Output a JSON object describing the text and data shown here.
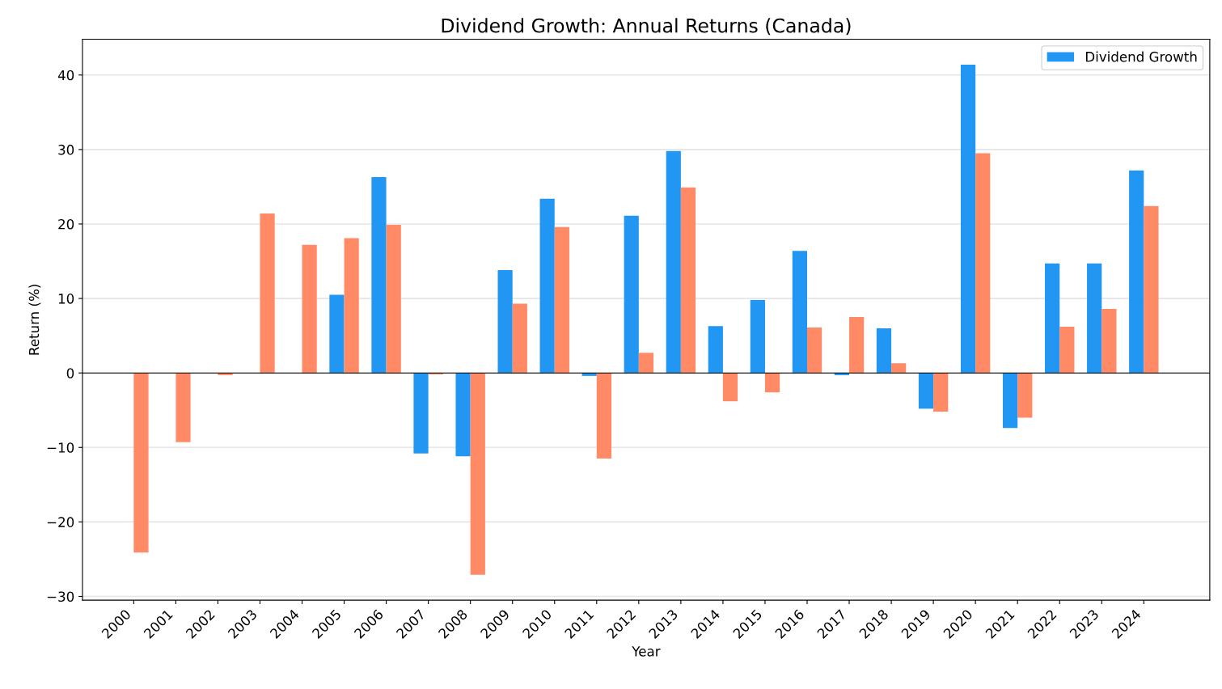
{
  "chart_data": {
    "type": "bar",
    "title": "Dividend Growth: Annual Returns (Canada)",
    "xlabel": "Year",
    "ylabel": "Return (%)",
    "categories": [
      "2000",
      "2001",
      "2002",
      "2003",
      "2004",
      "2005",
      "2006",
      "2007",
      "2008",
      "2009",
      "2010",
      "2011",
      "2012",
      "2013",
      "2014",
      "2015",
      "2016",
      "2017",
      "2018",
      "2019",
      "2020",
      "2021",
      "2022",
      "2023",
      "2024"
    ],
    "series": [
      {
        "name": "Dividend Growth",
        "color": "#2196f3",
        "values": [
          null,
          null,
          null,
          null,
          null,
          10.5,
          26.3,
          -10.8,
          -11.2,
          13.8,
          23.4,
          -0.4,
          21.1,
          29.8,
          6.3,
          9.8,
          16.4,
          -0.3,
          6.0,
          -4.8,
          41.4,
          -7.4,
          14.7,
          14.7,
          27.2
        ]
      },
      {
        "color": "#ff8a65",
        "values": [
          -24.1,
          -9.3,
          -0.3,
          21.4,
          17.2,
          18.1,
          19.9,
          -0.2,
          -27.1,
          9.3,
          19.6,
          -11.5,
          2.7,
          24.9,
          -3.8,
          -2.6,
          6.1,
          7.5,
          1.3,
          -5.2,
          29.5,
          -6.0,
          6.2,
          8.6,
          22.4
        ]
      }
    ],
    "ylim": [
      -30.5,
      44.8
    ],
    "yticks": [
      -30,
      -20,
      -10,
      0,
      10,
      20,
      30,
      40
    ],
    "ref_lines": [
      {
        "axis": "y",
        "value": 0,
        "color": "#000000"
      }
    ],
    "grid": "y",
    "legend": "top right"
  }
}
